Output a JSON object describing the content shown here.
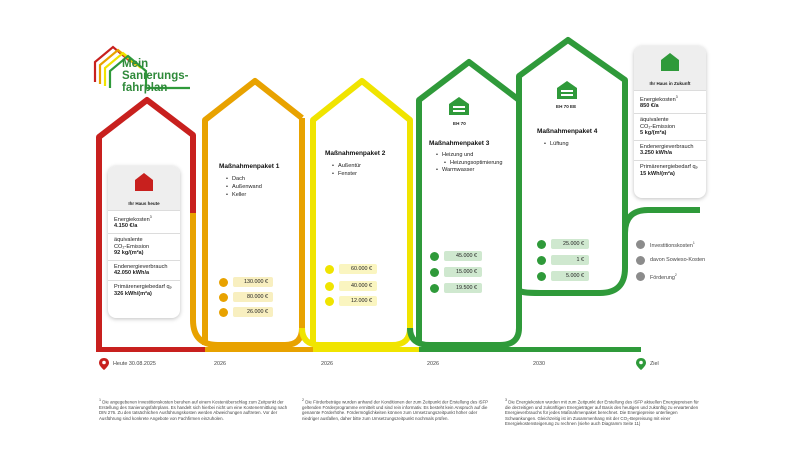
{
  "logo": {
    "line1": "Mein",
    "line2": "Sanierungs-",
    "line3": "fahrplan"
  },
  "today": {
    "caption": "Ihr Haus heute",
    "energy_label": "Energiekosten",
    "energy_sup": "3",
    "energy_value": "4.150 €/a",
    "co2_label_a": "äquivalente",
    "co2_label_b": "CO₂-Emission",
    "co2_value": "92 kg/(m²a)",
    "demand_label": "Endenergieverbrauch",
    "demand_value": "42.050 kWh/a",
    "primary_label": "Primärenergiebedarf qₚ",
    "primary_value": "326 kWh/(m²a)"
  },
  "future": {
    "caption": "Ihr Haus in Zukunft",
    "energy_label": "Energiekosten",
    "energy_sup": "3",
    "energy_value": "850 €/a",
    "co2_label_a": "äquivalente",
    "co2_label_b": "CO₂-Emission",
    "co2_value": "5 kg/(m²a)",
    "demand_label": "Endenergieverbrauch",
    "demand_value": "3.250 kWh/a",
    "primary_label": "Primärenergiebedarf qₚ",
    "primary_value": "15 kWh/(m²a)"
  },
  "packages": [
    {
      "title": "Maßnahmenpaket 1",
      "items": [
        "Dach",
        "Außenwand",
        "Keller"
      ],
      "cost": "130.000 €",
      "sowieso": "80.000 €",
      "funding": "26.000 €",
      "year": "2026",
      "color": "#e8a200"
    },
    {
      "title": "Maßnahmenpaket 2",
      "items": [
        "Außentür",
        "Fenster"
      ],
      "cost": "60.000 €",
      "sowieso": "40.000 €",
      "funding": "12.000 €",
      "year": "2026",
      "color": "#e6e000"
    },
    {
      "title": "Maßnahmenpaket 3",
      "badge": "EH 70",
      "items": [
        "Heizung und",
        "Heizungsoptimierung",
        "Warmwasser"
      ],
      "cost": "45.000 €",
      "sowieso": "15.000 €",
      "funding": "19.500 €",
      "year": "2026",
      "color": "#2f9a3a"
    },
    {
      "title": "Maßnahmenpaket 4",
      "badge": "EH 70 EE",
      "items": [
        "Lüftung"
      ],
      "cost": "25.000 €",
      "sowieso": "1 €",
      "funding": "5.000 €",
      "year": "2030",
      "color": "#2f9a3a"
    }
  ],
  "timeline": {
    "today_label": "Heute 30.08.2025",
    "goal_label": "Ziel"
  },
  "legend": {
    "cost": "Investitionskosten",
    "cost_sup": "1",
    "sowieso": "davon Sowieso-Kosten",
    "funding": "Förderung",
    "funding_sup": "2"
  },
  "footnotes": [
    {
      "num": "1",
      "text": "Die angegebenen Investitionskosten beruhen auf einem Kostenüberschlag zum Zeitpunkt der Erstellung des Sanierungsfahrplans. Es handelt sich hierbei nicht um eine Kostenermittlung nach DIN 276. Zu den tatsächlichen Ausführungskosten werden Abweichungen auftreten. Vor der Ausführung sind konkrete Angebote von Fachfirmen einzuholen."
    },
    {
      "num": "2",
      "text": "Die Förderbeträge wurden anhand der Konditionen der zum Zeitpunkt der Erstellung des iSFP geltenden Förderprogramme ermittelt und sind rein informativ. Es besteht kein Anspruch auf die genannte Förderhöhe. Fördermöglichkeiten können zum Umsetzungszeitpunkt höher oder niedriger ausfallen, daher bitte zum Umsetzungszeitpunkt nochmals prüfen."
    },
    {
      "num": "3",
      "text": "Die Energiekosten wurden mit zum Zeitpunkt der Erstellung des iSFP aktuellen Energiepreisen für die derzeitigen und zukünftigen Energieträger auf Basis des heutigen und zukünftig zu erwartenden Energieverbrauchs für jedes Maßnahmenpaket berechnet. Die Energiepreise unterliegen Schwankungen. Gleichzeitig ist im Zusammenhang mit der CO₂-Bepreisung mit einer Energiekostensteigerung zu rechnen (siehe auch Diagramm Seite 11)"
    }
  ],
  "colors": {
    "red": "#c8201e",
    "orange": "#e8a200",
    "yellow": "#f0e400",
    "green": "#2f9a3a",
    "light_green": "#cfe8cf",
    "cost_box": "#f8efc0",
    "grey_icon": "#8c8c8c"
  }
}
